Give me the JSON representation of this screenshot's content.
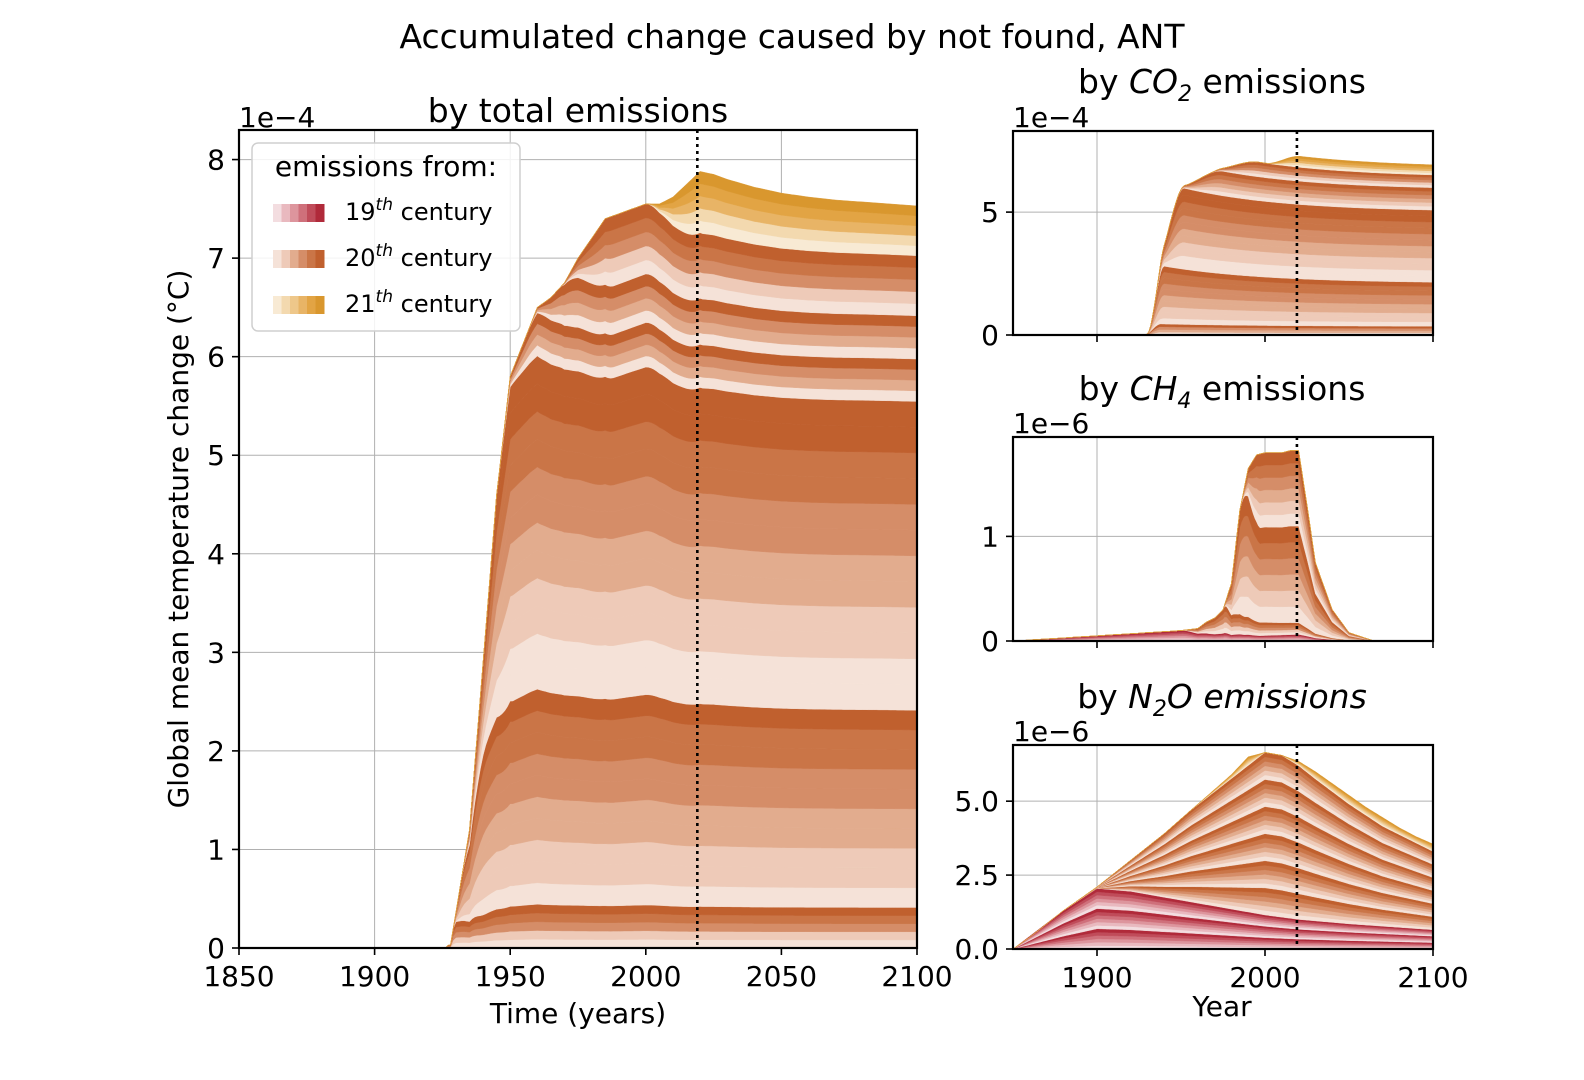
{
  "figure": {
    "suptitle": "Accumulated change caused by not found, ANT"
  },
  "colors": {
    "c19": [
      "#f3dde0",
      "#e9b9bf",
      "#dd959d",
      "#cf707b",
      "#c04c5a",
      "#b02a3a"
    ],
    "c20": [
      "#f5e2d8",
      "#eecab8",
      "#e2ac8e",
      "#d58d68",
      "#ca7547",
      "#c0602e"
    ],
    "c21": [
      "#f8ead4",
      "#f3d9af",
      "#eec78a",
      "#e8b466",
      "#e2a444",
      "#d9972e"
    ],
    "grid": "#b0b0b0",
    "vline": "#000000"
  },
  "legend": {
    "title": "emissions from:",
    "items": [
      {
        "base": "19",
        "sup": "th",
        "rest": " century",
        "palette": "c19"
      },
      {
        "base": "20",
        "sup": "th",
        "rest": " century",
        "palette": "c20"
      },
      {
        "base": "21",
        "sup": "th",
        "rest": " century",
        "palette": "c21"
      }
    ]
  },
  "chart_data": [
    {
      "id": "total",
      "type": "area",
      "title": "by total emissions",
      "xlabel": "Time (years)",
      "ylabel": "Global mean temperature change (°C)",
      "offset_text": "1e−4",
      "xlim": [
        1850,
        2100
      ],
      "ylim": [
        0,
        8.3
      ],
      "xticks": [
        1850,
        1900,
        1950,
        2000,
        2050,
        2100
      ],
      "xtick_labels": [
        "1850",
        "1900",
        "1950",
        "2000",
        "2050",
        "2100"
      ],
      "yticks": [
        0,
        1,
        2,
        3,
        4,
        5,
        6,
        7,
        8
      ],
      "ytick_labels": [
        "0",
        "1",
        "2",
        "3",
        "4",
        "5",
        "6",
        "7",
        "8"
      ],
      "vline_x": 2019,
      "grid": true,
      "total_envelope": {
        "x": [
          1850,
          1920,
          1928,
          1935,
          1945,
          1950,
          1955,
          1960,
          1965,
          1970,
          1975,
          1980,
          1985,
          1990,
          1995,
          2000,
          2005,
          2010,
          2015,
          2020,
          2025,
          2030,
          2040,
          2050,
          2060,
          2070,
          2080,
          2090,
          2100
        ],
        "y": [
          0,
          0.01,
          0.03,
          1.2,
          4.6,
          5.8,
          6.15,
          6.5,
          6.6,
          6.75,
          7.0,
          7.2,
          7.4,
          7.45,
          7.5,
          7.55,
          7.55,
          7.62,
          7.75,
          7.88,
          7.85,
          7.8,
          7.72,
          7.66,
          7.62,
          7.59,
          7.57,
          7.55,
          7.53
        ]
      },
      "layers": [
        {
          "palette": "c20",
          "peak_year": 1938,
          "rise_start": 1926,
          "peak": 0.47,
          "end": 0.38,
          "segments": 5
        },
        {
          "palette": "c20",
          "peak_year": 1941,
          "rise_start": 1929,
          "peak": 2.3,
          "end": 1.85,
          "segments": 10
        },
        {
          "palette": "c20",
          "peak_year": 1951,
          "rise_start": 1932,
          "peak": 3.45,
          "end": 2.9,
          "segments": 12
        },
        {
          "palette": "c20",
          "peak_year": 1962,
          "rise_start": 1944,
          "peak": 0.45,
          "end": 0.4,
          "segments": 4
        },
        {
          "palette": "c20",
          "peak_year": 1975,
          "rise_start": 1956,
          "peak": 0.5,
          "end": 0.4,
          "segments": 4
        },
        {
          "palette": "c20",
          "peak_year": 1988,
          "rise_start": 1968,
          "peak": 0.7,
          "end": 0.55,
          "segments": 5
        },
        {
          "palette": "c21",
          "peak_year": 2021,
          "rise_start": 2000,
          "peak": 0.6,
          "end": 0.43,
          "segments": 5
        }
      ]
    },
    {
      "id": "co2",
      "type": "area",
      "title_parts": [
        "by ",
        "CO",
        "2",
        " emissions"
      ],
      "offset_text": "1e−4",
      "xlim": [
        1850,
        2100
      ],
      "ylim": [
        0,
        8.3
      ],
      "xticks": [
        1900,
        2000,
        2100
      ],
      "yticks": [
        0,
        5
      ],
      "ytick_labels": [
        "0",
        "5"
      ],
      "vline_x": 2019,
      "layers": [
        {
          "palette": "c20",
          "rise_start": 1928,
          "peak_year": 1938,
          "peak": 0.45,
          "end": 0.35,
          "segments": 4
        },
        {
          "palette": "c20",
          "rise_start": 1930,
          "peak_year": 1940,
          "peak": 2.35,
          "end": 1.75,
          "segments": 10
        },
        {
          "palette": "c20",
          "rise_start": 1934,
          "peak_year": 1952,
          "peak": 3.3,
          "end": 2.9,
          "segments": 12
        },
        {
          "palette": "c20",
          "rise_start": 1946,
          "peak_year": 1975,
          "peak": 1.0,
          "end": 0.9,
          "segments": 6
        },
        {
          "palette": "c20",
          "rise_start": 1966,
          "peak_year": 1996,
          "peak": 0.6,
          "end": 0.5,
          "segments": 5
        },
        {
          "palette": "c21",
          "rise_start": 2000,
          "peak_year": 2021,
          "peak": 0.45,
          "end": 0.4,
          "segments": 5
        }
      ]
    },
    {
      "id": "ch4",
      "type": "area",
      "title_parts": [
        "by ",
        "CH",
        "4",
        " emissions"
      ],
      "offset_text": "1e−6",
      "xlim": [
        1850,
        2100
      ],
      "ylim": [
        0,
        1.95
      ],
      "xticks": [
        1900,
        2000,
        2100
      ],
      "yticks": [
        0,
        1
      ],
      "ytick_labels": [
        "0",
        "1"
      ],
      "vline_x": 2019,
      "layers": [
        {
          "palette": "c19",
          "rise_start": 1850,
          "peak_year": 1960,
          "peak": 0.1,
          "end": 0.0,
          "segments": 6,
          "decay_years": 40
        },
        {
          "palette": "c20",
          "rise_start": 1950,
          "peak_year": 1977,
          "peak": 0.22,
          "end": 0.0,
          "segments": 5,
          "decay_years": 25
        },
        {
          "palette": "c20",
          "rise_start": 1975,
          "peak_year": 1988,
          "peak": 0.95,
          "end": 0.0,
          "segments": 6,
          "decay_years": 30
        },
        {
          "palette": "c20",
          "rise_start": 1985,
          "peak_year": 1997,
          "peak": 0.55,
          "end": 0.0,
          "segments": 6,
          "decay_years": 30
        },
        {
          "palette": "c21",
          "rise_start": 2000,
          "peak_year": 2019,
          "peak": 0.0,
          "end": 0.0,
          "segments": 6,
          "decay_years": 30
        }
      ],
      "envelope": {
        "x": [
          1850,
          1900,
          1950,
          1960,
          1965,
          1970,
          1975,
          1980,
          1985,
          1990,
          1995,
          2000,
          2005,
          2010,
          2015,
          2020,
          2025,
          2030,
          2040,
          2050,
          2065,
          2100
        ],
        "y": [
          0,
          0.05,
          0.1,
          0.12,
          0.18,
          0.22,
          0.3,
          0.55,
          1.25,
          1.65,
          1.78,
          1.8,
          1.8,
          1.8,
          1.82,
          1.82,
          1.3,
          0.75,
          0.3,
          0.08,
          0.0,
          0.0
        ]
      }
    },
    {
      "id": "n2o",
      "type": "area",
      "title_parts": [
        "by ",
        "N",
        "2",
        "O emissions"
      ],
      "offset_text": "1e−6",
      "xlabel": "Year",
      "xlim": [
        1850,
        2100
      ],
      "ylim": [
        0,
        6.9
      ],
      "xticks": [
        1900,
        2000,
        2100
      ],
      "xtick_labels": [
        "1900",
        "2000",
        "2100"
      ],
      "yticks": [
        0,
        2.5,
        5.0
      ],
      "ytick_labels": [
        "0.0",
        "2.5",
        "5.0"
      ],
      "vline_x": 2019,
      "envelope": {
        "x": [
          1850,
          1860,
          1880,
          1900,
          1920,
          1940,
          1960,
          1980,
          1990,
          2000,
          2010,
          2020,
          2030,
          2040,
          2050,
          2060,
          2070,
          2080,
          2090,
          2100
        ],
        "y": [
          0,
          0.4,
          1.3,
          2.1,
          3.0,
          3.9,
          4.9,
          5.9,
          6.5,
          6.65,
          6.55,
          6.35,
          6.0,
          5.6,
          5.2,
          4.8,
          4.45,
          4.1,
          3.8,
          3.55
        ]
      },
      "split_19_20": {
        "x": [
          1850,
          1880,
          1900,
          1920,
          1940,
          1960,
          1980,
          2000,
          2020,
          2050,
          2100
        ],
        "y": [
          0,
          1.3,
          2.05,
          1.95,
          1.75,
          1.55,
          1.35,
          1.15,
          1.0,
          0.85,
          0.65
        ]
      },
      "split_20_21": {
        "x": [
          1850,
          2000,
          2010,
          2020,
          2030,
          2050,
          2070,
          2100
        ],
        "y": [
          0,
          6.65,
          6.55,
          6.2,
          5.75,
          4.9,
          4.15,
          3.3
        ]
      }
    }
  ]
}
